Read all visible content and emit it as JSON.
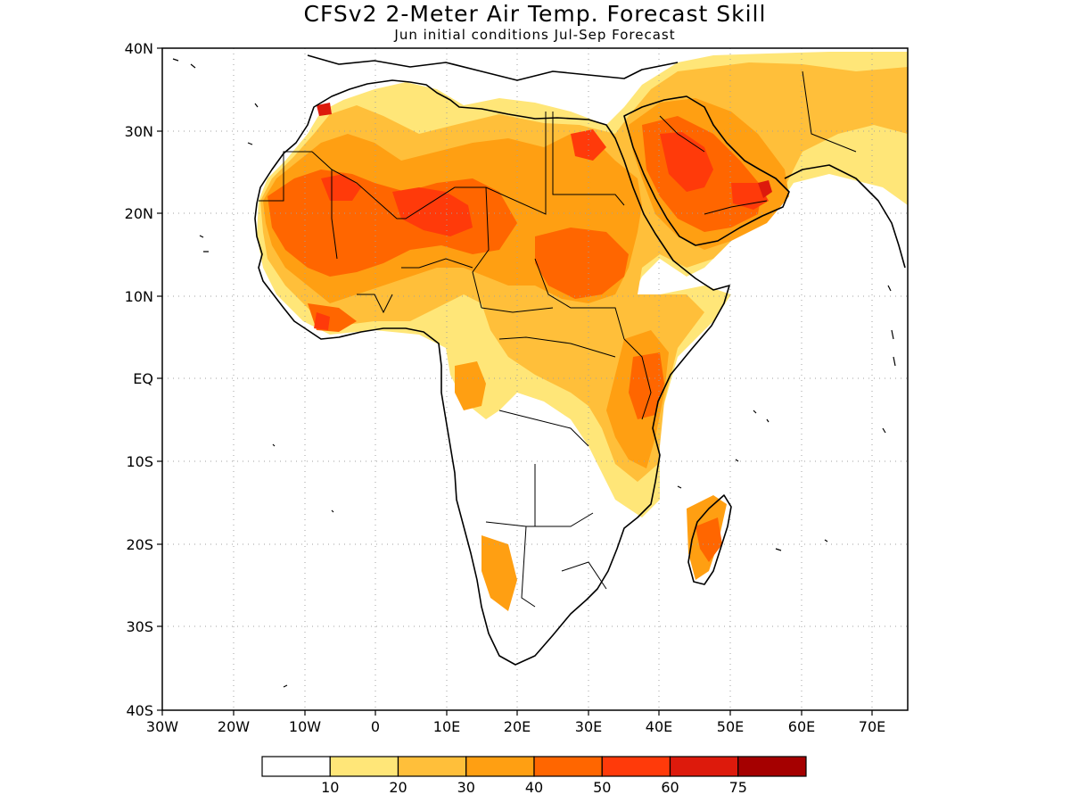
{
  "title": "CFSv2 2-Meter Air Temp. Forecast Skill",
  "subtitle": "Jun initial conditions  Jul-Sep Forecast",
  "lat_labels": [
    "40N",
    "30N",
    "20N",
    "10N",
    "EQ",
    "10S",
    "20S",
    "30S",
    "40S"
  ],
  "lon_labels": [
    "30W",
    "20W",
    "10W",
    "0",
    "10E",
    "20E",
    "30E",
    "40E",
    "50E",
    "60E",
    "70E"
  ],
  "colorbar": {
    "colors": [
      "#ffffff",
      "#ffe678",
      "#ffbf3a",
      "#ff9f12",
      "#ff6600",
      "#ff3a0a",
      "#dd1a0c",
      "#a50000"
    ],
    "labels": [
      "10",
      "20",
      "30",
      "40",
      "50",
      "60",
      "75"
    ]
  },
  "palette": {
    "coast": "#000000",
    "grid": "#a0a0a0"
  }
}
